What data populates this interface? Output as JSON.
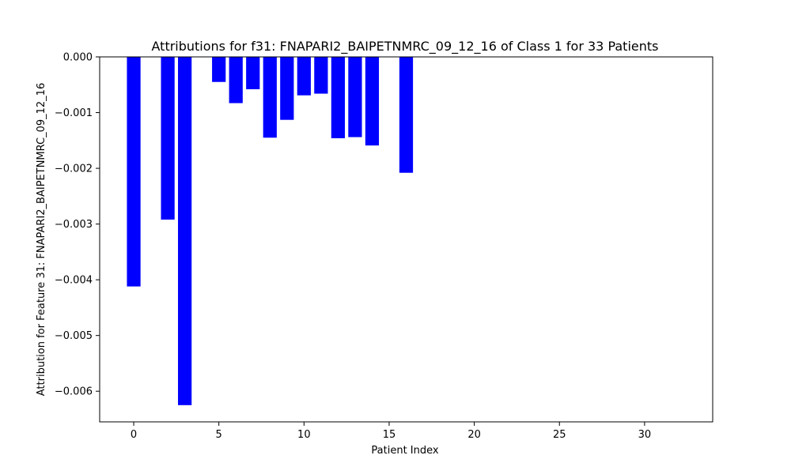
{
  "chart_data": {
    "type": "bar",
    "title": "Attributions for f31: FNAPARI2_BAIPETNMRC_09_12_16 of Class 1 for 33 Patients",
    "xlabel": "Patient Index",
    "ylabel": "Attribution for Feature 31: FNAPARI2_BAIPETNMRC_09_12_16",
    "xlim": [
      -2,
      34
    ],
    "ylim": [
      -0.00655,
      0.0
    ],
    "x_ticks": [
      0,
      5,
      10,
      15,
      20,
      25,
      30
    ],
    "y_ticks": [
      0.0,
      -0.001,
      -0.002,
      -0.003,
      -0.004,
      -0.005,
      -0.006
    ],
    "y_tick_labels": [
      "0.000",
      "−0.001",
      "−0.002",
      "−0.003",
      "−0.004",
      "−0.005",
      "−0.006"
    ],
    "bar_color": "#0000ff",
    "grid": false,
    "x": [
      0,
      1,
      2,
      3,
      4,
      5,
      6,
      7,
      8,
      9,
      10,
      11,
      12,
      13,
      14,
      15,
      16,
      17,
      18,
      19,
      20,
      21,
      22,
      23,
      24,
      25,
      26,
      27,
      28,
      29,
      30,
      31,
      32
    ],
    "values": [
      -0.00412,
      0,
      -0.00292,
      -0.00625,
      0,
      -0.00045,
      -0.00083,
      -0.00058,
      -0.00145,
      -0.00113,
      -0.00069,
      -0.00066,
      -0.00146,
      -0.00144,
      -0.00159,
      0,
      -0.00208,
      0,
      0,
      0,
      0,
      0,
      0,
      0,
      0,
      0,
      0,
      0,
      0,
      0,
      0,
      0,
      0
    ]
  }
}
